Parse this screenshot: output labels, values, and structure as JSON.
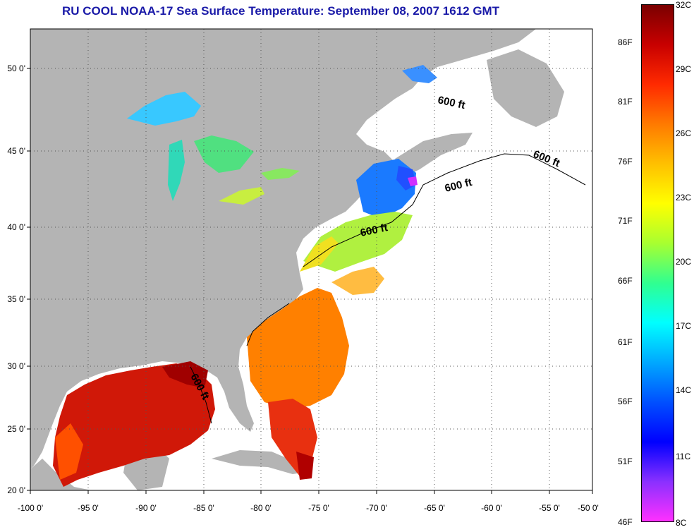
{
  "title": "RU COOL  NOAA-17  Sea Surface Temperature:  September 08, 2007 1612 GMT",
  "map": {
    "lon_range": [
      -100,
      -50
    ],
    "lat_range": [
      20,
      52.5
    ],
    "lon_ticks": [
      "-100 0'",
      "-95 0'",
      "-90 0'",
      "-85 0'",
      "-80 0'",
      "-75 0'",
      "-70 0'",
      "-65 0'",
      "-60 0'",
      "-55 0'",
      "-50 0'"
    ],
    "lat_ticks": [
      "50 0'",
      "45 0'",
      "40 0'",
      "35 0'",
      "30 0'",
      "25 0'",
      "20 0'"
    ],
    "isobath_labels": [
      "600 ft",
      "600 ft",
      "600 ft",
      "600 ft",
      "600 ft"
    ],
    "colors": {
      "land": "#b4b4b4",
      "no_data": "#ffffff",
      "grid": "#555555"
    }
  },
  "colorbar": {
    "celsius_ticks": [
      "32C",
      "29C",
      "26C",
      "23C",
      "20C",
      "17C",
      "14C",
      "11C",
      "8C"
    ],
    "fahrenheit_ticks": [
      "86F",
      "81F",
      "76F",
      "71F",
      "66F",
      "61F",
      "56F",
      "51F",
      "46F"
    ],
    "gradient": [
      "#7a0000",
      "#c80000",
      "#ff2a00",
      "#ff7a00",
      "#ffc000",
      "#ffff00",
      "#a8ff30",
      "#30ff90",
      "#00ffff",
      "#00a8ff",
      "#0050ff",
      "#0000ff",
      "#8a30ff",
      "#ff30ff"
    ]
  }
}
